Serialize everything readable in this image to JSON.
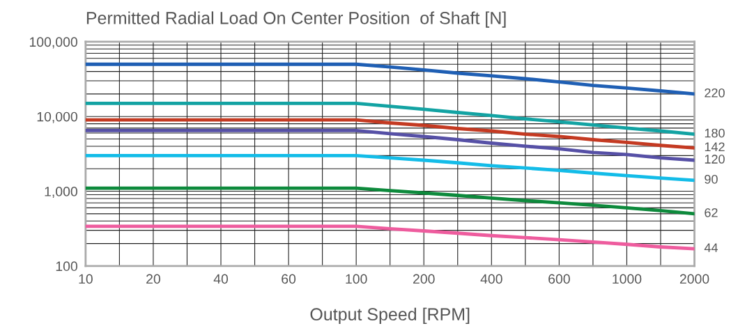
{
  "chart_data": {
    "type": "line",
    "title": "Permitted Radial Load On Center Position  of Shaft [N]",
    "xlabel": "Output Speed [RPM]",
    "categories": [
      "10",
      null,
      "20",
      null,
      "40",
      null,
      "60",
      null,
      "100",
      null,
      "200",
      null,
      "400",
      null,
      "600",
      null,
      "1000",
      null,
      "2000"
    ],
    "log": "y",
    "ylim": [
      100,
      100000
    ],
    "yticks": [
      {
        "value": 100,
        "label": "100"
      },
      {
        "value": 1000,
        "label": "1,000"
      },
      {
        "value": 10000,
        "label": "10,000"
      },
      {
        "value": 100000,
        "label": "100,000"
      }
    ],
    "grid": true,
    "marker": "none",
    "line_style": "solid",
    "series": [
      {
        "name": "220",
        "color": "#1f5fb4",
        "values": [
          50000,
          50000,
          50000,
          50000,
          50000,
          50000,
          50000,
          50000,
          50000,
          46000,
          42000,
          38000,
          35000,
          32000,
          29000,
          26000,
          24000,
          22000,
          20000
        ]
      },
      {
        "name": "180",
        "color": "#13a3a3",
        "values": [
          15000,
          15000,
          15000,
          15000,
          15000,
          15000,
          15000,
          15000,
          15000,
          13700,
          12500,
          11300,
          10300,
          9300,
          8500,
          7700,
          7000,
          6400,
          5800
        ]
      },
      {
        "name": "142",
        "color": "#c43a22",
        "values": [
          9000,
          9000,
          9000,
          9000,
          9000,
          9000,
          9000,
          9000,
          9000,
          8200,
          7600,
          6900,
          6400,
          5800,
          5400,
          4900,
          4500,
          4100,
          3800
        ]
      },
      {
        "name": "120",
        "color": "#5650a6",
        "values": [
          6500,
          6500,
          6500,
          6500,
          6500,
          6500,
          6500,
          6500,
          6500,
          5900,
          5400,
          4900,
          4400,
          4000,
          3700,
          3300,
          3100,
          2800,
          2600
        ]
      },
      {
        "name": "90",
        "color": "#13bce8",
        "values": [
          3000,
          3000,
          3000,
          3000,
          3000,
          3000,
          3000,
          3000,
          3000,
          2800,
          2600,
          2400,
          2200,
          2050,
          1900,
          1750,
          1620,
          1500,
          1400
        ]
      },
      {
        "name": "62",
        "color": "#0d8a3c",
        "values": [
          1100,
          1100,
          1100,
          1100,
          1100,
          1100,
          1100,
          1100,
          1100,
          1020,
          950,
          880,
          810,
          750,
          700,
          650,
          600,
          550,
          500
        ]
      },
      {
        "name": "44",
        "color": "#ee5c9e",
        "values": [
          340,
          340,
          340,
          340,
          340,
          340,
          340,
          340,
          340,
          315,
          295,
          275,
          255,
          240,
          225,
          210,
          195,
          180,
          170
        ]
      }
    ]
  }
}
